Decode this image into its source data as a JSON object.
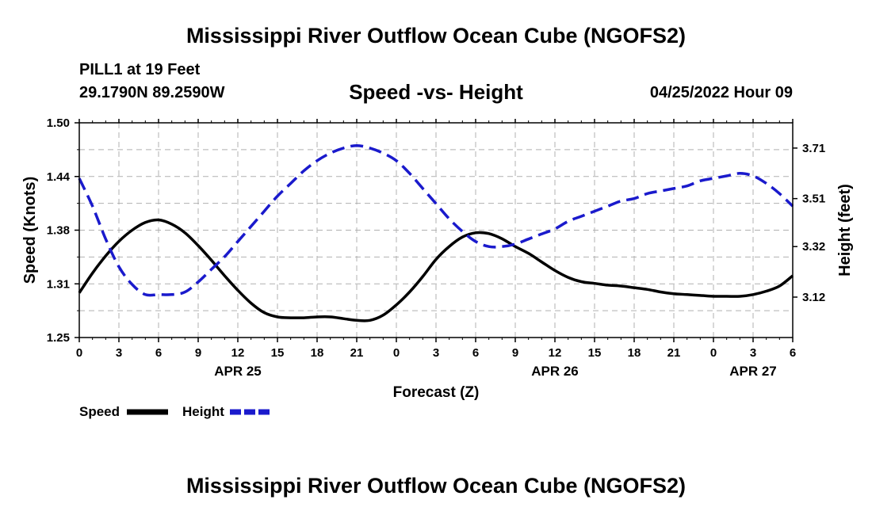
{
  "header": {
    "title": "Mississippi River Outflow Ocean Cube (NGOFS2)",
    "station": "PILL1 at 19 Feet",
    "coords": "29.1790N  89.2590W",
    "subtitle": "Speed -vs- Height",
    "datetime": "04/25/2022 Hour 09"
  },
  "footer": {
    "title": "Mississippi River Outflow Ocean Cube (NGOFS2)"
  },
  "chart_data": {
    "type": "line",
    "title": "Speed -vs- Height",
    "xlabel": "Forecast (Z)",
    "ylabel": "Speed (Knots)",
    "y2label": "Height (feet)",
    "grid": true,
    "xlim": [
      0,
      54
    ],
    "ylim": [
      1.25,
      1.5
    ],
    "y2lim": [
      2.96,
      3.81
    ],
    "x_ticks": [
      0,
      3,
      6,
      9,
      12,
      15,
      18,
      21,
      24,
      27,
      30,
      33,
      36,
      39,
      42,
      45,
      48,
      51,
      54
    ],
    "x_tick_labels": [
      "0",
      "3",
      "6",
      "9",
      "12",
      "15",
      "18",
      "21",
      "0",
      "3",
      "6",
      "9",
      "12",
      "15",
      "18",
      "21",
      "0",
      "3",
      "6"
    ],
    "date_labels": [
      {
        "x": 12,
        "label": "APR 25"
      },
      {
        "x": 36,
        "label": "APR 26"
      },
      {
        "x": 51,
        "label": "APR 27"
      }
    ],
    "y_ticks": [
      "1.25",
      "1.31",
      "1.38",
      "1.44",
      "1.50"
    ],
    "y2_ticks": [
      "3.12",
      "3.32",
      "3.51",
      "3.71"
    ],
    "legend_position": "bottom-left",
    "series": [
      {
        "name": "Speed",
        "axis": "left",
        "color": "#000000",
        "style": "solid",
        "x": [
          0,
          1,
          2,
          3,
          4,
          5,
          6,
          7,
          8,
          9,
          10,
          11,
          12,
          13,
          14,
          15,
          16,
          17,
          18,
          19,
          20,
          21,
          22,
          23,
          24,
          25,
          26,
          27,
          28,
          29,
          30,
          31,
          32,
          33,
          34,
          35,
          36,
          37,
          38,
          39,
          40,
          41,
          42,
          43,
          44,
          45,
          46,
          47,
          48,
          49,
          50,
          51,
          52,
          53,
          54
        ],
        "values": [
          1.302,
          1.325,
          1.345,
          1.362,
          1.375,
          1.384,
          1.387,
          1.382,
          1.372,
          1.357,
          1.34,
          1.322,
          1.305,
          1.29,
          1.279,
          1.274,
          1.273,
          1.273,
          1.274,
          1.274,
          1.272,
          1.27,
          1.27,
          1.276,
          1.288,
          1.303,
          1.321,
          1.341,
          1.356,
          1.367,
          1.372,
          1.371,
          1.365,
          1.356,
          1.348,
          1.338,
          1.328,
          1.32,
          1.315,
          1.313,
          1.311,
          1.31,
          1.308,
          1.306,
          1.303,
          1.301,
          1.3,
          1.299,
          1.298,
          1.298,
          1.298,
          1.3,
          1.304,
          1.31,
          1.322
        ]
      },
      {
        "name": "Height",
        "axis": "right",
        "color": "#1a1acc",
        "style": "dashed",
        "x": [
          0,
          1,
          2,
          3,
          4,
          5,
          6,
          7,
          8,
          9,
          10,
          11,
          12,
          13,
          14,
          15,
          16,
          17,
          18,
          19,
          20,
          21,
          22,
          23,
          24,
          25,
          26,
          27,
          28,
          29,
          30,
          31,
          32,
          33,
          34,
          35,
          36,
          37,
          38,
          39,
          40,
          41,
          42,
          43,
          44,
          45,
          46,
          47,
          48,
          49,
          50,
          51,
          52,
          53,
          54
        ],
        "values": [
          3.59,
          3.48,
          3.35,
          3.24,
          3.17,
          3.13,
          3.13,
          3.13,
          3.14,
          3.18,
          3.23,
          3.28,
          3.34,
          3.4,
          3.46,
          3.52,
          3.57,
          3.62,
          3.66,
          3.69,
          3.71,
          3.72,
          3.71,
          3.69,
          3.66,
          3.61,
          3.55,
          3.49,
          3.43,
          3.38,
          3.34,
          3.32,
          3.32,
          3.33,
          3.35,
          3.37,
          3.39,
          3.42,
          3.44,
          3.46,
          3.48,
          3.5,
          3.51,
          3.53,
          3.54,
          3.55,
          3.56,
          3.58,
          3.59,
          3.6,
          3.61,
          3.6,
          3.57,
          3.53,
          3.48
        ]
      }
    ]
  }
}
